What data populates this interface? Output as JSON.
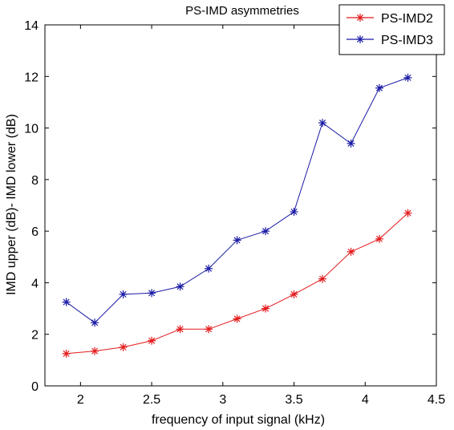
{
  "chart_data": {
    "type": "line",
    "title": "PS-IMD asymmetries",
    "xlabel": "frequency of input signal (kHz)",
    "ylabel": "IMD upper (dB)- IMD lower (dB)",
    "xlim": [
      1.75,
      4.5
    ],
    "ylim": [
      0,
      14
    ],
    "xticks": [
      "2",
      "2.5",
      "3",
      "3.5",
      "4",
      "4.5"
    ],
    "yticks": [
      "0",
      "2",
      "4",
      "6",
      "8",
      "10",
      "12",
      "14"
    ],
    "grid": false,
    "legend_position": "top-right",
    "x": [
      1.9,
      2.1,
      2.3,
      2.5,
      2.7,
      2.9,
      3.1,
      3.3,
      3.5,
      3.7,
      3.9,
      4.1,
      4.3
    ],
    "series": [
      {
        "name": "PS-IMD2",
        "color": "#e31a1c",
        "marker": "asterisk",
        "values": [
          1.25,
          1.35,
          1.5,
          1.75,
          2.2,
          2.2,
          2.6,
          3.0,
          3.55,
          4.15,
          5.2,
          5.7,
          6.7
        ]
      },
      {
        "name": "PS-IMD3",
        "color": "#1a1aa6",
        "marker": "asterisk",
        "values": [
          3.25,
          2.45,
          3.55,
          3.6,
          3.85,
          4.55,
          5.65,
          6.0,
          6.75,
          10.2,
          9.4,
          11.55,
          11.95
        ]
      }
    ]
  }
}
